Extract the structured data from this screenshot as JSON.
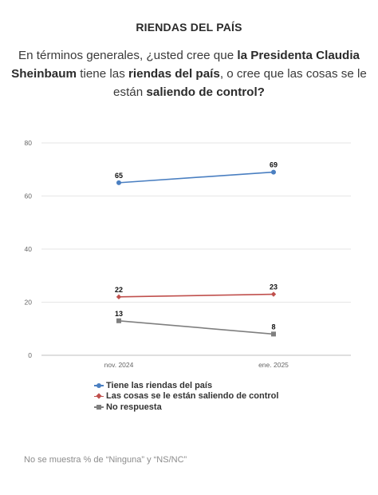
{
  "header": "RIENDAS DEL PAÍS",
  "question": [
    {
      "t": "En términos generales, ¿usted cree que ",
      "b": false
    },
    {
      "t": "la Presidenta Claudia Sheinbaum",
      "b": true
    },
    {
      "t": " tiene las ",
      "b": false
    },
    {
      "t": "riendas del país",
      "b": true
    },
    {
      "t": ", o cree que las cosas se le están ",
      "b": false
    },
    {
      "t": "saliendo de control?",
      "b": true
    }
  ],
  "footer": "No se muestra % de “Ninguna” y “NS/NC”",
  "chart_data": {
    "type": "line",
    "categories": [
      "nov. 2024",
      "ene. 2025"
    ],
    "ylim": [
      0,
      80
    ],
    "yticks": [
      0,
      20,
      40,
      60,
      80
    ],
    "grid": true,
    "legend_position": "bottom",
    "series": [
      {
        "name": "Tiene las riendas del país",
        "values": [
          65,
          69
        ],
        "color": "#4a7fc1",
        "marker": "circle"
      },
      {
        "name": "Las cosas se le están saliendo de control",
        "values": [
          22,
          23
        ],
        "color": "#c0504d",
        "marker": "diamond"
      },
      {
        "name": "No respuesta",
        "values": [
          13,
          8
        ],
        "color": "#7f7f7f",
        "marker": "square"
      }
    ]
  }
}
